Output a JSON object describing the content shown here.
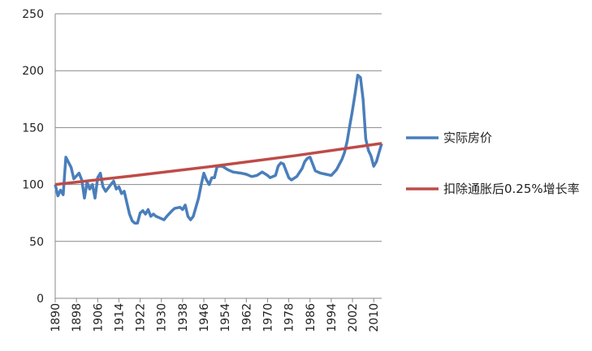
{
  "chart_data": {
    "type": "line",
    "xlim": [
      1890,
      2013
    ],
    "xticks": [
      1890,
      1898,
      1906,
      1914,
      1922,
      1930,
      1938,
      1946,
      1954,
      1962,
      1970,
      1978,
      1986,
      1994,
      2002,
      2010
    ],
    "ylim": [
      0,
      250
    ],
    "yticks": [
      0,
      50,
      100,
      150,
      200,
      250
    ],
    "grid": true,
    "legend": "right",
    "series": [
      {
        "name": "实际房价",
        "color": "#4a7ebb",
        "x": [
          1890,
          1891,
          1892,
          1893,
          1894,
          1896,
          1897,
          1899,
          1900,
          1901,
          1902,
          1903,
          1904,
          1905,
          1906,
          1907,
          1908,
          1909,
          1911,
          1912,
          1913,
          1914,
          1915,
          1916,
          1917,
          1918,
          1919,
          1920,
          1921,
          1922,
          1923,
          1924,
          1925,
          1926,
          1927,
          1928,
          1930,
          1931,
          1932,
          1934,
          1935,
          1937,
          1938,
          1939,
          1940,
          1941,
          1942,
          1944,
          1945,
          1946,
          1947,
          1948,
          1949,
          1950,
          1951,
          1953,
          1955,
          1957,
          1960,
          1962,
          1964,
          1966,
          1968,
          1970,
          1971,
          1973,
          1974,
          1975,
          1976,
          1977,
          1978,
          1979,
          1981,
          1983,
          1984,
          1985,
          1986,
          1987,
          1988,
          1990,
          1992,
          1994,
          1996,
          1998,
          1999,
          2000,
          2001,
          2002,
          2003,
          2004,
          2005,
          2006,
          2007,
          2008,
          2009,
          2010,
          2011,
          2012,
          2013
        ],
        "values": [
          100,
          90,
          95,
          91,
          124,
          115,
          105,
          110,
          104,
          88,
          102,
          96,
          100,
          88,
          106,
          110,
          98,
          94,
          100,
          103,
          96,
          98,
          92,
          94,
          84,
          74,
          68,
          66,
          66,
          75,
          77,
          74,
          78,
          72,
          74,
          72,
          70,
          69,
          72,
          77,
          79,
          80,
          78,
          82,
          72,
          69,
          72,
          88,
          100,
          110,
          104,
          100,
          106,
          106,
          116,
          116,
          113,
          111,
          110,
          109,
          107,
          108,
          111,
          108,
          106,
          108,
          116,
          119,
          118,
          112,
          106,
          104,
          107,
          114,
          120,
          123,
          124,
          118,
          112,
          110,
          109,
          108,
          113,
          122,
          128,
          138,
          152,
          165,
          180,
          196,
          194,
          175,
          140,
          130,
          125,
          116,
          120,
          128,
          136
        ]
      },
      {
        "name": "扣除通胀后0.25%增长率",
        "color": "#be4b48",
        "x": [
          1890,
          1920,
          1950,
          1980,
          2013
        ],
        "values": [
          100,
          107.8,
          116.2,
          125.2,
          136.1
        ]
      }
    ]
  }
}
